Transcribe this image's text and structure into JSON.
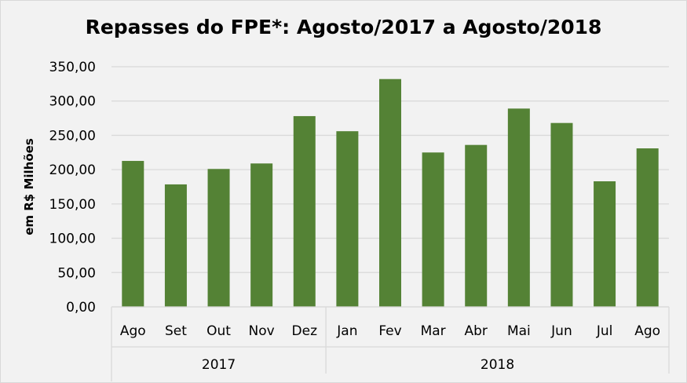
{
  "chart_data": {
    "type": "bar",
    "title": "Repasses do FPE*: Agosto/2017 a Agosto/2018",
    "xlabel": "",
    "ylabel": "em R$ Milhões",
    "ylim": [
      0,
      350
    ],
    "yticks": [
      "0,00",
      "50,00",
      "100,00",
      "150,00",
      "200,00",
      "250,00",
      "300,00",
      "350,00"
    ],
    "grid": true,
    "categories": [
      "Ago",
      "Set",
      "Out",
      "Nov",
      "Dez",
      "Jan",
      "Fev",
      "Mar",
      "Abr",
      "Mai",
      "Jun",
      "Jul",
      "Ago"
    ],
    "groups": [
      {
        "label": "2017",
        "count": 5
      },
      {
        "label": "2018",
        "count": 8
      }
    ],
    "values": [
      212.7,
      178.5,
      201,
      209,
      278,
      256,
      332,
      225,
      236,
      289,
      268,
      183,
      231
    ],
    "bar_color": "#548235"
  }
}
